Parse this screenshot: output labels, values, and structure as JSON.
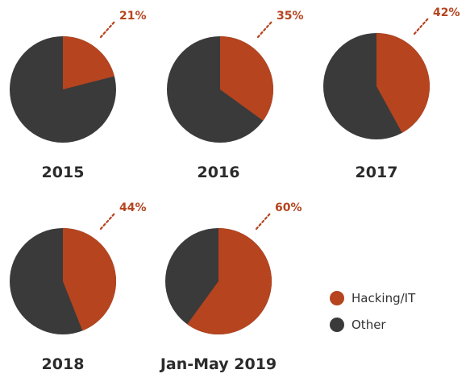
{
  "colors": {
    "hacking": "#B5441F",
    "other": "#3A3A3A"
  },
  "legend": {
    "hacking_label": "Hacking/IT",
    "other_label": "Other"
  },
  "chart_data": [
    {
      "type": "pie",
      "title": "2015",
      "slices": [
        {
          "label": "Hacking/IT",
          "value": 21,
          "display": "21%"
        },
        {
          "label": "Other",
          "value": 79
        }
      ]
    },
    {
      "type": "pie",
      "title": "2016",
      "slices": [
        {
          "label": "Hacking/IT",
          "value": 35,
          "display": "35%"
        },
        {
          "label": "Other",
          "value": 65
        }
      ]
    },
    {
      "type": "pie",
      "title": "2017",
      "slices": [
        {
          "label": "Hacking/IT",
          "value": 42,
          "display": "42%"
        },
        {
          "label": "Other",
          "value": 58
        }
      ]
    },
    {
      "type": "pie",
      "title": "2018",
      "slices": [
        {
          "label": "Hacking/IT",
          "value": 44,
          "display": "44%"
        },
        {
          "label": "Other",
          "value": 56
        }
      ]
    },
    {
      "type": "pie",
      "title": "Jan-May 2019",
      "slices": [
        {
          "label": "Hacking/IT",
          "value": 60,
          "display": "60%"
        },
        {
          "label": "Other",
          "value": 40
        }
      ]
    }
  ]
}
